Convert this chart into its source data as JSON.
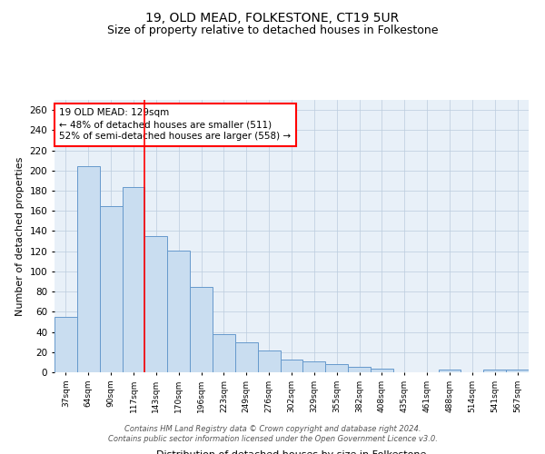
{
  "title": "19, OLD MEAD, FOLKESTONE, CT19 5UR",
  "subtitle": "Size of property relative to detached houses in Folkestone",
  "xlabel": "Distribution of detached houses by size in Folkestone",
  "ylabel": "Number of detached properties",
  "categories": [
    "37sqm",
    "64sqm",
    "90sqm",
    "117sqm",
    "143sqm",
    "170sqm",
    "196sqm",
    "223sqm",
    "249sqm",
    "276sqm",
    "302sqm",
    "329sqm",
    "355sqm",
    "382sqm",
    "408sqm",
    "435sqm",
    "461sqm",
    "488sqm",
    "514sqm",
    "541sqm",
    "567sqm"
  ],
  "values": [
    55,
    204,
    165,
    184,
    135,
    121,
    85,
    38,
    30,
    22,
    13,
    11,
    8,
    5,
    4,
    0,
    0,
    3,
    0,
    3,
    3
  ],
  "bar_color": "#c9ddf0",
  "bar_edge_color": "#6699cc",
  "vline_pos": 3.5,
  "vline_color": "red",
  "annotation_title": "19 OLD MEAD: 129sqm",
  "annotation_line1": "← 48% of detached houses are smaller (511)",
  "annotation_line2": "52% of semi-detached houses are larger (558) →",
  "annotation_box_color": "white",
  "annotation_box_edge": "red",
  "ylim": [
    0,
    270
  ],
  "yticks": [
    0,
    20,
    40,
    60,
    80,
    100,
    120,
    140,
    160,
    180,
    200,
    220,
    240,
    260
  ],
  "grid_color": "#bbccdd",
  "background_color": "#e8f0f8",
  "title_fontsize": 10,
  "subtitle_fontsize": 9,
  "ylabel_fontsize": 8,
  "xlabel_fontsize": 8,
  "footer_line1": "Contains HM Land Registry data © Crown copyright and database right 2024.",
  "footer_line2": "Contains public sector information licensed under the Open Government Licence v3.0."
}
